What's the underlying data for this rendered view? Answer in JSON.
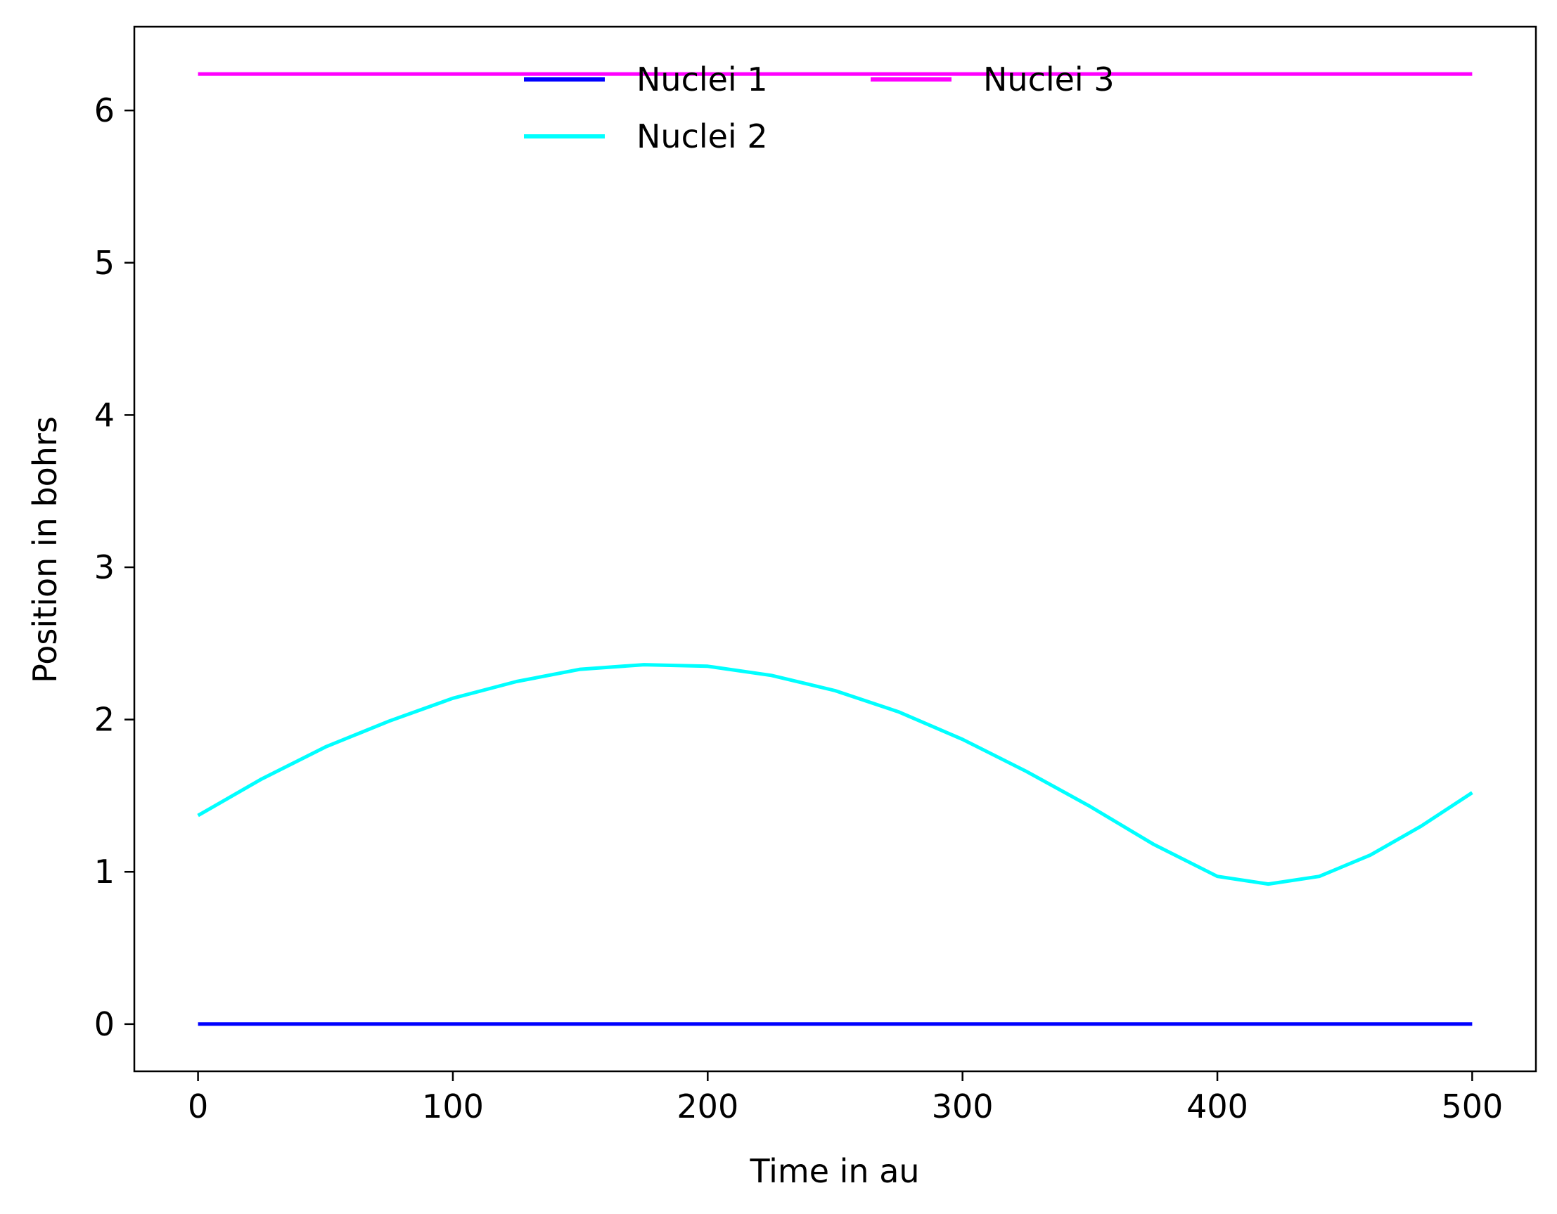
{
  "chart_data": {
    "type": "line",
    "title": "",
    "xlabel": "Time in au",
    "ylabel": "Position in bohrs",
    "xlim": [
      -25,
      525
    ],
    "ylim": [
      -0.31,
      6.55
    ],
    "xticks": [
      0,
      100,
      200,
      300,
      400,
      500
    ],
    "yticks": [
      0,
      1,
      2,
      3,
      4,
      5,
      6
    ],
    "grid": false,
    "legend": {
      "placement": "upper-center",
      "columns": 2,
      "frame": false
    },
    "series": [
      {
        "name": "Nuclei 1",
        "color": "#0000ff",
        "x": [
          0,
          100,
          200,
          300,
          400,
          500
        ],
        "y": [
          0,
          0,
          0,
          0,
          0,
          0
        ]
      },
      {
        "name": "Nuclei 2",
        "color": "#00ffff",
        "x": [
          0,
          25,
          50,
          75,
          100,
          125,
          150,
          175,
          200,
          225,
          250,
          275,
          300,
          325,
          350,
          375,
          400,
          420,
          440,
          460,
          480,
          500
        ],
        "y": [
          1.37,
          1.61,
          1.82,
          1.99,
          2.14,
          2.25,
          2.33,
          2.36,
          2.35,
          2.29,
          2.19,
          2.05,
          1.87,
          1.66,
          1.43,
          1.18,
          0.97,
          0.92,
          0.97,
          1.11,
          1.3,
          1.52
        ]
      },
      {
        "name": "Nuclei 3",
        "color": "#ff00ff",
        "x": [
          0,
          100,
          200,
          300,
          400,
          500
        ],
        "y": [
          6.24,
          6.24,
          6.24,
          6.24,
          6.24,
          6.24
        ]
      }
    ]
  }
}
